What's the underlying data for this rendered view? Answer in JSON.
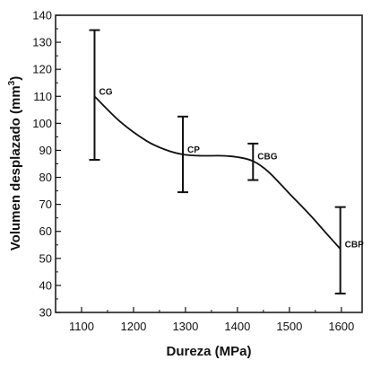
{
  "chart_data": {
    "type": "line",
    "title": "",
    "xlabel": "Dureza (MPa)",
    "ylabel_main": "Volumen desplazado (mm",
    "ylabel_sup": "3",
    "ylabel_end": ")",
    "xlim": [
      1050,
      1640
    ],
    "ylim": [
      30,
      140
    ],
    "xticks": [
      1100,
      1200,
      1300,
      1400,
      1500,
      1600
    ],
    "yticks": [
      30,
      40,
      50,
      60,
      70,
      80,
      90,
      100,
      110,
      120,
      130,
      140
    ],
    "points": [
      {
        "label": "CG",
        "x": 1125,
        "y": 110,
        "err_low": 86.5,
        "err_high": 134.5
      },
      {
        "label": "CP",
        "x": 1295,
        "y": 88.5,
        "err_low": 74.5,
        "err_high": 102.5
      },
      {
        "label": "CBG",
        "x": 1430,
        "y": 86,
        "err_low": 79,
        "err_high": 92.5
      },
      {
        "label": "CBP",
        "x": 1598,
        "y": 53.5,
        "err_low": 37,
        "err_high": 69
      }
    ],
    "curve": [
      [
        1125,
        110
      ],
      [
        1175,
        100.5
      ],
      [
        1225,
        93.5
      ],
      [
        1262,
        90.2
      ],
      [
        1295,
        88.5
      ],
      [
        1330,
        88
      ],
      [
        1370,
        88
      ],
      [
        1400,
        87.5
      ],
      [
        1430,
        86
      ],
      [
        1460,
        82
      ],
      [
        1500,
        74
      ],
      [
        1540,
        66
      ],
      [
        1570,
        59.5
      ],
      [
        1598,
        53.5
      ]
    ],
    "grid": false
  }
}
